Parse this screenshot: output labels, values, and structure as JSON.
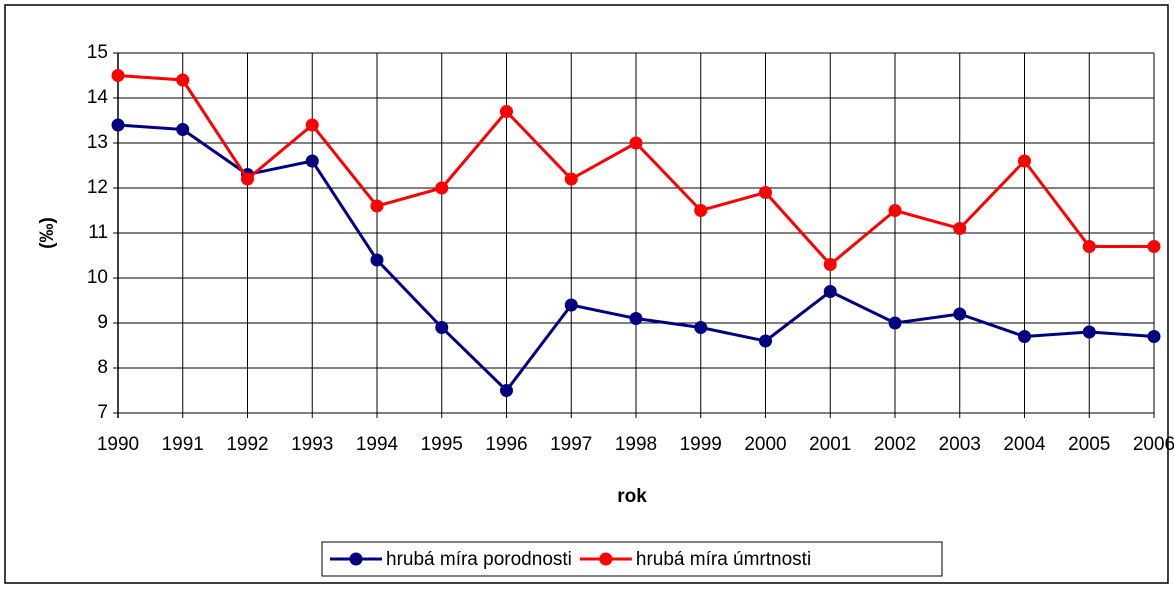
{
  "chart_data": {
    "type": "line",
    "categories": [
      "1990",
      "1991",
      "1992",
      "1993",
      "1994",
      "1995",
      "1996",
      "1997",
      "1998",
      "1999",
      "2000",
      "2001",
      "2002",
      "2003",
      "2004",
      "2005",
      "2006"
    ],
    "series": [
      {
        "name": "hrubá míra porodnosti",
        "color": "#000080",
        "values": [
          13.4,
          13.3,
          12.3,
          12.6,
          10.4,
          8.9,
          7.5,
          9.4,
          9.1,
          8.9,
          8.6,
          9.7,
          9.0,
          9.2,
          8.7,
          8.8,
          8.7
        ]
      },
      {
        "name": "hrubá míra úmrtnosti",
        "color": "#ff0000",
        "values": [
          14.5,
          14.4,
          12.2,
          13.4,
          11.6,
          12.0,
          13.7,
          12.2,
          13.0,
          11.5,
          11.9,
          10.3,
          11.5,
          11.1,
          12.6,
          10.7,
          10.7
        ]
      }
    ],
    "xlabel": "rok",
    "ylabel": "(‰)",
    "ylim": [
      7,
      15
    ],
    "yticks": [
      7,
      8,
      9,
      10,
      11,
      12,
      13,
      14,
      15
    ],
    "grid": true,
    "legend": "bottom"
  }
}
